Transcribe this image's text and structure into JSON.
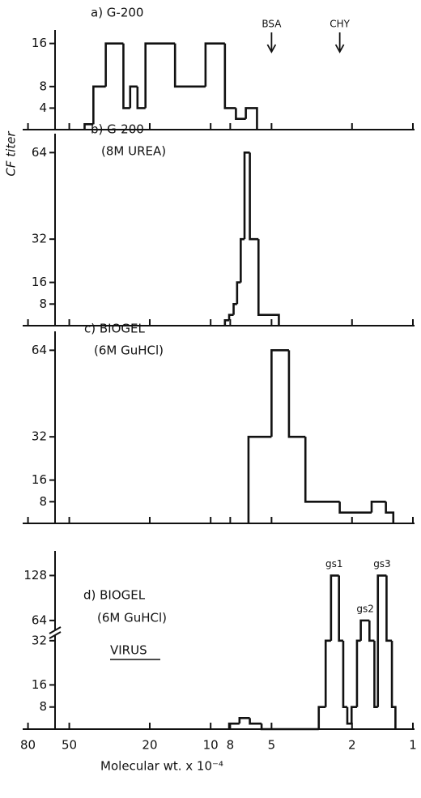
{
  "chart_data": [
    {
      "type": "histogram",
      "labels": [
        "a) G-200"
      ],
      "ylabel": "CF titer",
      "bins": [
        42,
        38,
        33,
        27,
        25,
        23,
        21,
        15,
        10.6,
        8.5,
        7.5,
        6.7,
        5.9
      ],
      "values": [
        1,
        8,
        16,
        4,
        8,
        4,
        16,
        8,
        16,
        4,
        2,
        4
      ],
      "color": "#111111",
      "xscale": "log",
      "xlim": [
        85,
        1
      ],
      "xticks": [
        80,
        50,
        20,
        10,
        8,
        5,
        2,
        1
      ],
      "ylim": [
        0,
        17
      ],
      "yticks": [
        4,
        8,
        16
      ],
      "annotations": [
        {
          "text": "BSA",
          "x": 5
        },
        {
          "text": "CHY",
          "x": 2.3
        }
      ]
    },
    {
      "type": "histogram",
      "labels": [
        "b) G-200",
        "(8M UREA)"
      ],
      "bins": [
        8.5,
        8.1,
        7.7,
        7.4,
        7.1,
        6.8,
        6.4,
        5.8,
        4.6
      ],
      "values": [
        2,
        4,
        8,
        16,
        32,
        64,
        32,
        4
      ],
      "color": "#111111",
      "xscale": "log",
      "xlim": [
        85,
        1
      ],
      "xticks": [
        80,
        50,
        20,
        10,
        8,
        5,
        2,
        1
      ],
      "ylim": [
        0,
        68
      ],
      "yticks": [
        8,
        16,
        32,
        64
      ]
    },
    {
      "type": "histogram",
      "labels": [
        "c) BIOGEL",
        "(6M GuHCl)"
      ],
      "bins": [
        6.5,
        5.0,
        4.1,
        3.4,
        2.3,
        1.6,
        1.36,
        1.25
      ],
      "values": [
        32,
        64,
        32,
        8,
        4,
        8,
        4
      ],
      "color": "#111111",
      "xscale": "log",
      "xlim": [
        85,
        1
      ],
      "xticks": [
        80,
        50,
        20,
        10,
        8,
        5,
        2,
        1
      ],
      "ylim": [
        0,
        68
      ],
      "yticks": [
        8,
        16,
        32,
        64
      ]
    },
    {
      "type": "histogram",
      "labels": [
        "d) BIOGEL",
        "(6M GuHCl)"
      ],
      "note": "VIRUS",
      "xlabel": "Molecular wt. x 10⁻⁴",
      "bins": [
        8.1,
        7.2,
        6.4,
        5.6,
        2.92,
        2.7,
        2.54,
        2.32,
        2.21,
        2.11,
        2.01,
        1.89,
        1.81,
        1.64,
        1.55,
        1.49,
        1.35,
        1.27,
        1.22
      ],
      "values": [
        2,
        4,
        2,
        0,
        8,
        32,
        128,
        32,
        8,
        2,
        8,
        32,
        64,
        32,
        8,
        128,
        32,
        8
      ],
      "color": "#111111",
      "xscale": "log",
      "xlim": [
        85,
        1
      ],
      "xticks": [
        80,
        50,
        20,
        10,
        8,
        5,
        2,
        1
      ],
      "ylim": [
        0,
        140
      ],
      "ybreak": [
        34,
        50
      ],
      "yticks": [
        8,
        16,
        32,
        64,
        128
      ],
      "annotations": [
        {
          "text": "gs1",
          "x": 2.45,
          "y": 128
        },
        {
          "text": "gs2",
          "x": 1.72,
          "y": 64
        },
        {
          "text": "gs3",
          "x": 1.42,
          "y": 128
        }
      ]
    }
  ]
}
